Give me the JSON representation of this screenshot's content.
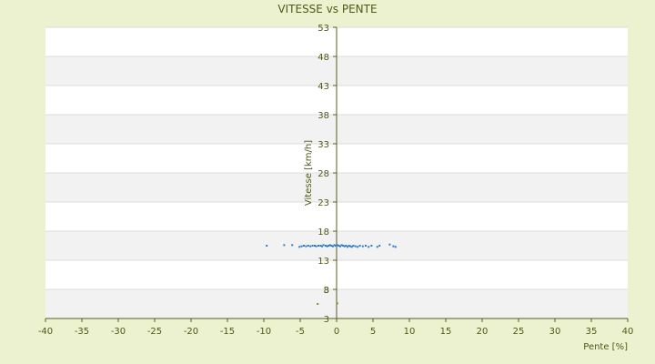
{
  "chart_data": {
    "type": "scatter",
    "title": "VITESSE vs PENTE",
    "xlabel": "Pente [%]",
    "ylabel": "Vitesse [km/h]",
    "xlim": [
      -40,
      40
    ],
    "ylim": [
      3,
      53
    ],
    "x_ticks": [
      "-40",
      "-35",
      "-30",
      "-25",
      "-20",
      "-15",
      "-10",
      "-5",
      "0",
      "5",
      "10",
      "15",
      "20",
      "25",
      "30",
      "35",
      "40"
    ],
    "y_ticks": [
      "3",
      "3",
      "8",
      "13",
      "18",
      "23",
      "28",
      "33",
      "38",
      "43",
      "48",
      "53"
    ],
    "grid": true,
    "legend": "none",
    "colors": {
      "background": "#ecf2cf",
      "plot_band_light": "#ffffff",
      "plot_band_dark": "#f2f2f2",
      "text": "#4d5a16",
      "axis": "#5a5a1e",
      "series": "#2f7ec4",
      "outlier": "#8a8a30"
    },
    "series": [
      {
        "color": "#2f7ec4",
        "points": [
          [
            -9.6,
            15.5
          ],
          [
            -7.2,
            15.6
          ],
          [
            -6.1,
            15.6
          ],
          [
            -5.1,
            15.3
          ],
          [
            -4.8,
            15.4
          ],
          [
            -4.5,
            15.5
          ],
          [
            -4.2,
            15.4
          ],
          [
            -3.9,
            15.5
          ],
          [
            -3.6,
            15.4
          ],
          [
            -3.3,
            15.5
          ],
          [
            -3.0,
            15.5
          ],
          [
            -2.8,
            15.4
          ],
          [
            -2.5,
            15.5
          ],
          [
            -2.2,
            15.5
          ],
          [
            -2.0,
            15.4
          ],
          [
            -1.8,
            15.6
          ],
          [
            -1.5,
            15.5
          ],
          [
            -1.3,
            15.4
          ],
          [
            -1.1,
            15.5
          ],
          [
            -0.9,
            15.6
          ],
          [
            -0.7,
            15.5
          ],
          [
            -0.5,
            15.4
          ],
          [
            -0.3,
            15.6
          ],
          [
            -0.1,
            15.5
          ],
          [
            0.1,
            15.6
          ],
          [
            0.3,
            15.5
          ],
          [
            0.5,
            15.4
          ],
          [
            0.7,
            15.6
          ],
          [
            0.9,
            15.5
          ],
          [
            1.1,
            15.4
          ],
          [
            1.3,
            15.5
          ],
          [
            1.5,
            15.3
          ],
          [
            1.7,
            15.5
          ],
          [
            1.9,
            15.4
          ],
          [
            2.1,
            15.3
          ],
          [
            2.3,
            15.5
          ],
          [
            2.6,
            15.4
          ],
          [
            2.9,
            15.3
          ],
          [
            3.2,
            15.5
          ],
          [
            3.6,
            15.4
          ],
          [
            4.0,
            15.5
          ],
          [
            4.4,
            15.3
          ],
          [
            4.8,
            15.5
          ],
          [
            5.6,
            15.3
          ],
          [
            5.9,
            15.5
          ],
          [
            7.3,
            15.7
          ],
          [
            7.8,
            15.4
          ],
          [
            8.1,
            15.3
          ]
        ]
      },
      {
        "color": "#8a8a30",
        "points": [
          [
            -2.6,
            5.5
          ],
          [
            0.1,
            5.6
          ]
        ]
      }
    ]
  }
}
